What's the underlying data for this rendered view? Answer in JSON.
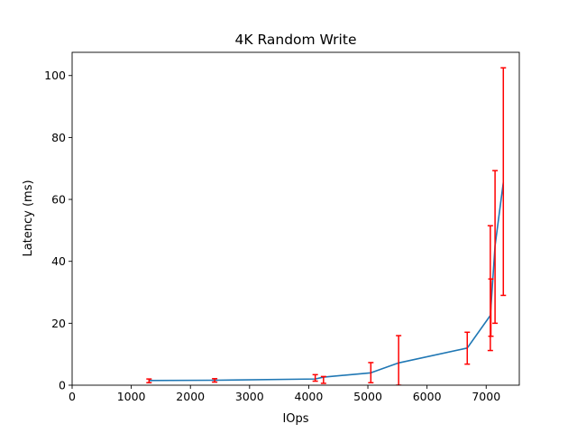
{
  "chart_data": {
    "type": "line",
    "title": "4K  Random Write",
    "xlabel": "IOps",
    "ylabel": "Latency (ms)",
    "xlim": [
      0,
      7560
    ],
    "ylim": [
      0,
      107.5
    ],
    "xticks": [
      0,
      1000,
      2000,
      3000,
      4000,
      5000,
      6000,
      7000
    ],
    "yticks": [
      0,
      20,
      40,
      60,
      80,
      100
    ],
    "grid": false,
    "series": [
      {
        "color": "#1f77b4",
        "points": [
          {
            "x": 1300,
            "y": 1.5,
            "err_low": 0.8,
            "err_high": 2.0
          },
          {
            "x": 2410,
            "y": 1.6,
            "err_low": 1.0,
            "err_high": 2.1
          },
          {
            "x": 4110,
            "y": 2.0,
            "err_low": 1.3,
            "err_high": 3.4
          },
          {
            "x": 4250,
            "y": 2.6,
            "err_low": 0.6,
            "err_high": 2.8
          },
          {
            "x": 5050,
            "y": 4.0,
            "err_low": 0.8,
            "err_high": 7.3
          },
          {
            "x": 5520,
            "y": 7.2,
            "err_low": 0.0,
            "err_high": 16.0
          },
          {
            "x": 6680,
            "y": 12.0,
            "err_low": 6.8,
            "err_high": 17.1
          },
          {
            "x": 7070,
            "y": 22.5,
            "err_low": 11.2,
            "err_high": 51.5
          },
          {
            "x": 7080,
            "y": 25.0,
            "err_low": 15.8,
            "err_high": 34.3
          },
          {
            "x": 7150,
            "y": 45.0,
            "err_low": 20.0,
            "err_high": 69.3
          },
          {
            "x": 7290,
            "y": 65.5,
            "err_low": 29.0,
            "err_high": 102.5
          }
        ]
      }
    ],
    "error_bar_color": "#ff0000"
  }
}
